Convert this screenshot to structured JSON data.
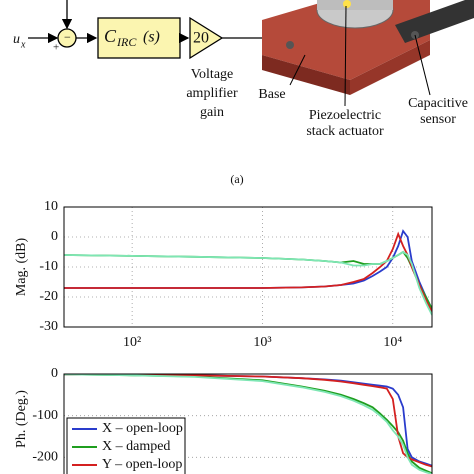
{
  "diagram": {
    "input_label": "u",
    "input_subscript": "x",
    "plus_sign": "+",
    "minus_sign": "−",
    "controller": {
      "main": "C",
      "subscript": "IRC",
      "arg": "(s)"
    },
    "gain_value": "20",
    "gain_label": [
      "Voltage",
      "amplifier",
      "gain"
    ],
    "base_label": "Base",
    "actuator_label": [
      "Piezoelectric",
      "stack actuator"
    ],
    "sensor_label": [
      "Capacitive",
      "sensor"
    ],
    "caption": "(a)"
  },
  "chart_data": [
    {
      "type": "line",
      "ylabel": "Mag. (dB)",
      "xscale": "log",
      "grid": true,
      "xlim": [
        30,
        20000
      ],
      "ylim": [
        -30,
        10
      ],
      "xticks": [
        {
          "value": 100,
          "label": "10²"
        },
        {
          "value": 1000,
          "label": "10³"
        },
        {
          "value": 10000,
          "label": "10⁴"
        }
      ],
      "yticks": [
        10,
        0,
        -10,
        -20,
        -30
      ],
      "x": [
        30,
        100,
        300,
        1000,
        2000,
        3000,
        4000,
        5000,
        6000,
        7000,
        8000,
        9000,
        10000,
        11000,
        12000,
        13000,
        14000,
        16000,
        18000,
        20000
      ],
      "series": [
        {
          "name": "X – open-loop",
          "color": "#2a3ccc",
          "values": [
            -17,
            -17,
            -17,
            -17,
            -16.8,
            -16.5,
            -16,
            -15.5,
            -14.5,
            -13,
            -11.5,
            -10,
            -7,
            -3,
            2,
            0,
            -8,
            -15,
            -20,
            -24
          ]
        },
        {
          "name": "X – damped",
          "color": "#1f9e1f",
          "values": [
            -6,
            -6.3,
            -6.6,
            -7,
            -7.5,
            -8,
            -8.5,
            -8,
            -9,
            -9,
            -9,
            -8,
            -7,
            -6,
            -5,
            -7,
            -10,
            -16,
            -20,
            -24
          ]
        },
        {
          "name": "Y – open-loop",
          "color": "#d42020",
          "values": [
            -17,
            -17,
            -17,
            -17,
            -16.8,
            -16.5,
            -16,
            -15,
            -14,
            -12,
            -10,
            -8,
            -4,
            1,
            -3,
            -6,
            -10,
            -16,
            -21,
            -25
          ]
        },
        {
          "name": null,
          "color": "#7ee6b4",
          "values": [
            -6,
            -6.3,
            -6.6,
            -7,
            -7.5,
            -8,
            -8.5,
            -9.5,
            -9.5,
            -9,
            -9,
            -8,
            -7,
            -6,
            -5,
            -6,
            -9,
            -17,
            -22,
            -26
          ]
        }
      ]
    },
    {
      "type": "line",
      "ylabel": "Ph. (Deg.)",
      "xscale": "log",
      "grid": true,
      "legend": "lower left",
      "xlim": [
        30,
        20000
      ],
      "ylim": [
        -240,
        0
      ],
      "yticks": [
        0,
        -100,
        -200
      ],
      "x": [
        30,
        100,
        300,
        1000,
        2000,
        3000,
        4000,
        5000,
        6000,
        7000,
        8000,
        9000,
        10000,
        11000,
        12000,
        13000,
        14000,
        16000,
        18000,
        20000
      ],
      "series": [
        {
          "name": "X – open-loop",
          "color": "#2a3ccc",
          "values": [
            -1,
            -2,
            -3,
            -6,
            -10,
            -13,
            -16,
            -20,
            -23,
            -26,
            -28,
            -30,
            -35,
            -50,
            -80,
            -180,
            -200,
            -210,
            -215,
            -220
          ]
        },
        {
          "name": "X – damped",
          "color": "#1f9e1f",
          "values": [
            -1,
            -3,
            -6,
            -15,
            -30,
            -40,
            -50,
            -60,
            -70,
            -80,
            -95,
            -110,
            -125,
            -140,
            -160,
            -190,
            -210,
            -225,
            -232,
            -238
          ]
        },
        {
          "name": "Y – open-loop",
          "color": "#d42020",
          "values": [
            -1,
            -2,
            -3,
            -6,
            -10,
            -14,
            -18,
            -22,
            -26,
            -29,
            -32,
            -35,
            -60,
            -150,
            -190,
            -200,
            -205,
            -212,
            -218,
            -222
          ]
        },
        {
          "name": null,
          "color": "#7ee6b4",
          "values": [
            -1,
            -3,
            -7,
            -17,
            -32,
            -43,
            -53,
            -64,
            -75,
            -86,
            -100,
            -115,
            -135,
            -150,
            -170,
            -200,
            -218,
            -230,
            -236,
            -240
          ]
        }
      ]
    }
  ]
}
